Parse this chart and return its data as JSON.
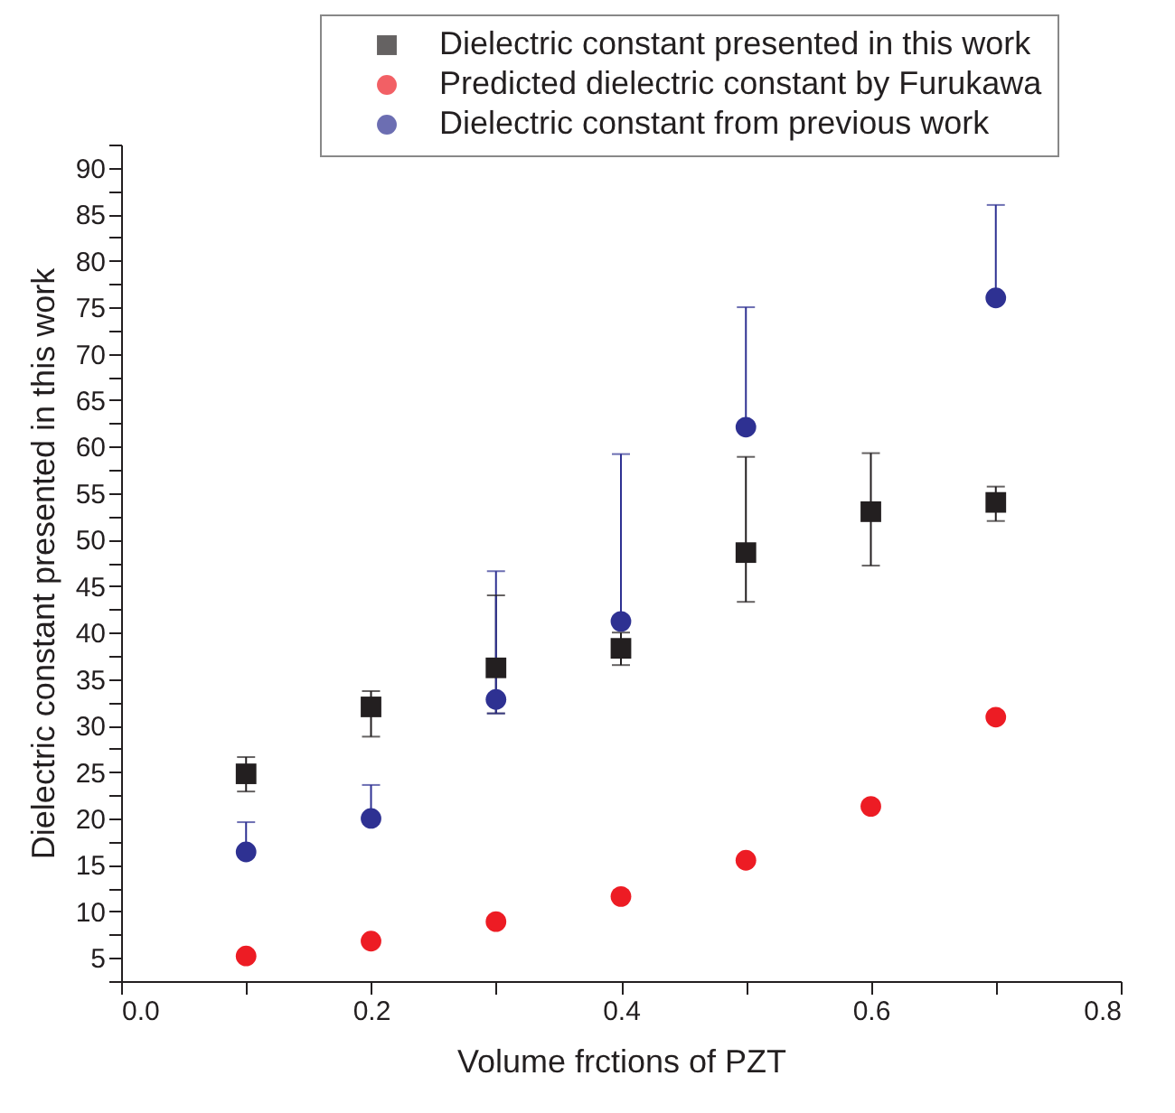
{
  "chart_data": {
    "type": "scatter",
    "xlabel": "Volume frctions of PZT",
    "ylabel": "Dielectric constant presented in this work",
    "x": [
      0.1,
      0.2,
      0.3,
      0.4,
      0.5,
      0.6,
      0.7
    ],
    "series": [
      {
        "name": "Dielectric constant presented in this work",
        "color": "#231f20",
        "marker": "square",
        "values": [
          24.8,
          32,
          36.2,
          38.3,
          48.6,
          53,
          54
        ],
        "errors": [
          [
            22.9,
            26.6
          ],
          [
            28.8,
            33.7
          ],
          [
            31.3,
            44
          ],
          [
            36.5,
            40
          ],
          [
            43.3,
            58.9
          ],
          [
            47.2,
            59.3
          ],
          [
            52,
            55.7
          ]
        ]
      },
      {
        "name": "Predicted dielectric constant by Furukawa",
        "color": "#ed1c24",
        "marker": "circle",
        "values": [
          5.2,
          6.8,
          8.9,
          11.6,
          15.5,
          21.3,
          30.9
        ]
      },
      {
        "name": "Dielectric constant from previous work",
        "color": "#2e3192",
        "marker": "circle",
        "x": [
          0.1,
          0.2,
          0.3,
          0.4,
          0.5,
          0.7
        ],
        "values": [
          16.4,
          20,
          32.8,
          41.2,
          62.1,
          76
        ],
        "errors": [
          [
            16.4,
            19.6
          ],
          [
            20,
            23.6
          ],
          [
            31.3,
            46.6
          ],
          [
            41.2,
            59.2
          ],
          [
            62.1,
            75
          ],
          [
            76,
            86
          ]
        ]
      }
    ],
    "xlim": [
      0,
      0.8
    ],
    "xticks": [
      {
        "value": 0,
        "label": "0.0"
      },
      {
        "value": 0.1,
        "label": null
      },
      0.2,
      {
        "value": 0.3,
        "label": null
      },
      0.4,
      {
        "value": 0.5,
        "label": null
      },
      0.6,
      {
        "value": 0.7,
        "label": null
      },
      0.8
    ],
    "ylim": [
      2.5,
      92.5
    ],
    "yticks": [
      {
        "value": 2.5,
        "label": null
      },
      5,
      {
        "value": 7.5,
        "label": null
      },
      10,
      {
        "value": 12.5,
        "label": null
      },
      15,
      {
        "value": 17.5,
        "label": null
      },
      20,
      {
        "value": 22.5,
        "label": null
      },
      25,
      {
        "value": 27.5,
        "label": null
      },
      30,
      {
        "value": 32.5,
        "label": null
      },
      35,
      {
        "value": 37.5,
        "label": null
      },
      40,
      {
        "value": 42.5,
        "label": null
      },
      45,
      {
        "value": 47.5,
        "label": null
      },
      50,
      {
        "value": 52.5,
        "label": null
      },
      55,
      {
        "value": 57.5,
        "label": null
      },
      60,
      {
        "value": 62.5,
        "label": null
      },
      65,
      {
        "value": 67.5,
        "label": null
      },
      70,
      {
        "value": 72.5,
        "label": null
      },
      75,
      {
        "value": 77.5,
        "label": null
      },
      80,
      {
        "value": 82.5,
        "label": null
      },
      85,
      {
        "value": 87.5,
        "label": null
      },
      90,
      {
        "value": 92.5,
        "label": null
      }
    ],
    "grid": false,
    "legend": "top right"
  }
}
